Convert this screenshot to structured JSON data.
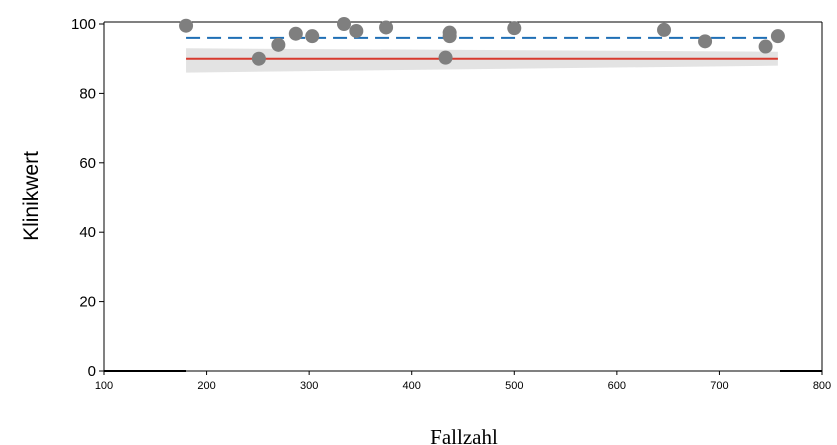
{
  "chart_data": {
    "type": "scatter",
    "title": "",
    "xlabel": "Fallzahl",
    "ylabel": "Klinikwert",
    "xlim": [
      100,
      800
    ],
    "ylim": [
      0,
      100
    ],
    "x_ticks": [
      100,
      200,
      300,
      400,
      500,
      600,
      700,
      800
    ],
    "y_ticks": [
      0,
      20,
      40,
      60,
      80,
      100
    ],
    "grid": false,
    "points": [
      {
        "x": 180,
        "y": 99.5
      },
      {
        "x": 251,
        "y": 90.0
      },
      {
        "x": 270,
        "y": 94.0
      },
      {
        "x": 287,
        "y": 97.2
      },
      {
        "x": 303,
        "y": 96.5
      },
      {
        "x": 334,
        "y": 100.0
      },
      {
        "x": 346,
        "y": 98.0
      },
      {
        "x": 375,
        "y": 99.0
      },
      {
        "x": 433,
        "y": 90.3
      },
      {
        "x": 437,
        "y": 97.5
      },
      {
        "x": 437,
        "y": 96.5
      },
      {
        "x": 500,
        "y": 98.8
      },
      {
        "x": 646,
        "y": 98.3
      },
      {
        "x": 686,
        "y": 95.0
      },
      {
        "x": 745,
        "y": 93.5
      },
      {
        "x": 757,
        "y": 96.5
      }
    ],
    "reference_lines": [
      {
        "style": "dashed",
        "color": "#1f6fb5",
        "x_range": [
          180,
          757
        ],
        "y": 96.0
      },
      {
        "style": "solid",
        "color": "#d83a2e",
        "x_range": [
          180,
          757
        ],
        "y": 90.0
      }
    ],
    "confidence_band": {
      "color": "#d9d9d9",
      "x": [
        180,
        757
      ],
      "lower": [
        86.0,
        88.0
      ],
      "upper": [
        93.0,
        92.0
      ]
    },
    "point_color": "#7f7f7f"
  }
}
